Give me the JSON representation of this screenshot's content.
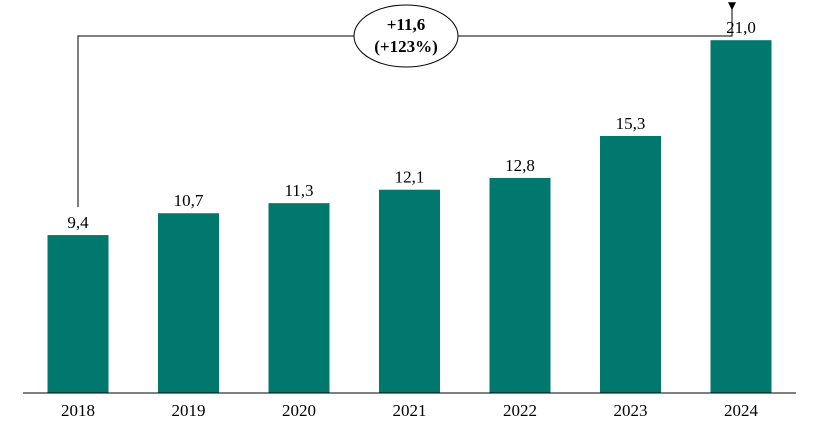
{
  "chart_data": {
    "type": "bar",
    "categories": [
      "2018",
      "2019",
      "2020",
      "2021",
      "2022",
      "2023",
      "2024"
    ],
    "values": [
      9.4,
      10.7,
      11.3,
      12.1,
      12.8,
      15.3,
      21.0
    ],
    "value_labels": [
      "9,4",
      "10,7",
      "11,3",
      "12,1",
      "12,8",
      "15,3",
      "21,0"
    ],
    "bar_color": "#00786e",
    "ylim": [
      0,
      22.5
    ],
    "grid": false,
    "legend": "none",
    "annotation": {
      "from": "2018",
      "to": "2024",
      "line1": "+11,6",
      "line2": "(+123%)"
    }
  }
}
